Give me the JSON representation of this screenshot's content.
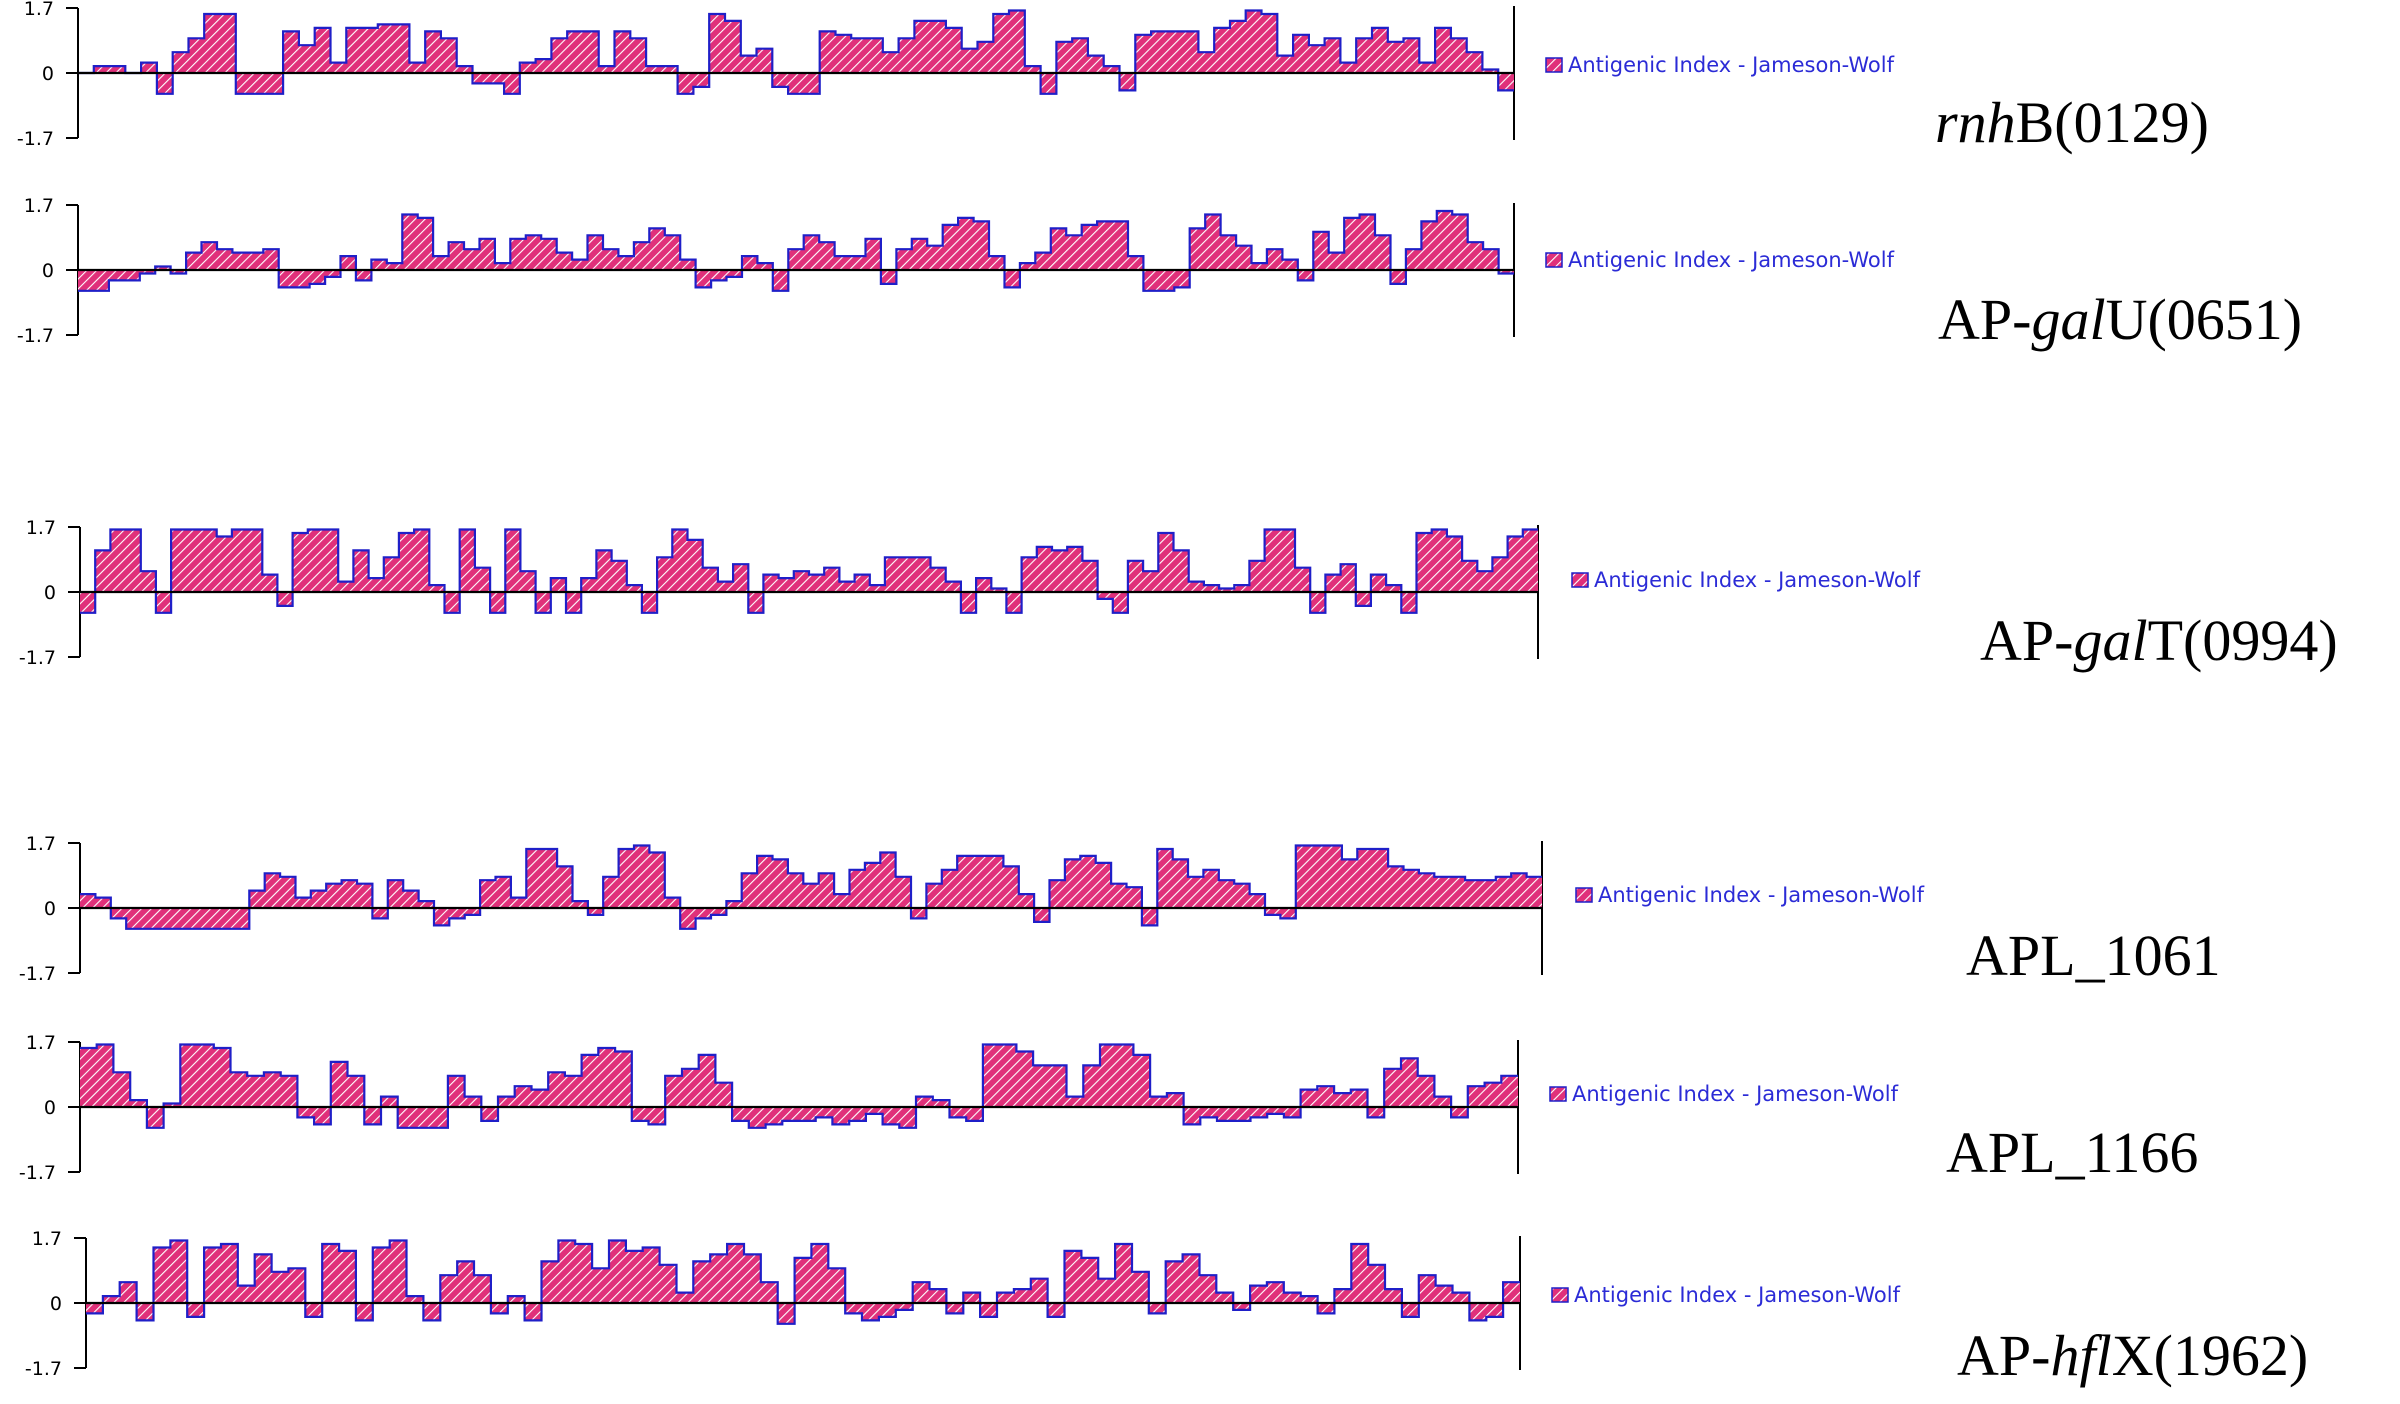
{
  "colors": {
    "fill": "#e0307a",
    "hatch": "#ffffff",
    "outline": "#1f1fc8",
    "axis": "#000000",
    "legend_text": "#2b2bd6"
  },
  "chart_data": [
    {
      "type": "area",
      "legend": "Antigenic Index - Jameson-Wolf",
      "gene_label": {
        "italic": "rnh",
        "rest": "B(0129)",
        "lead": ""
      },
      "yticks": [
        "1.7",
        "0",
        "-1.7"
      ],
      "ylim": [
        -1.7,
        1.7
      ],
      "values": [
        0,
        0.2,
        0.2,
        0,
        0.3,
        -0.6,
        0.6,
        1.0,
        1.7,
        1.7,
        -0.6,
        -0.6,
        -0.6,
        1.2,
        0.8,
        1.3,
        0.3,
        1.3,
        1.3,
        1.4,
        1.4,
        0.3,
        1.2,
        1.0,
        0.2,
        -0.3,
        -0.3,
        -0.6,
        0.3,
        0.4,
        1.0,
        1.2,
        1.2,
        0.2,
        1.2,
        1.0,
        0.2,
        0.2,
        -0.6,
        -0.4,
        1.7,
        1.5,
        0.5,
        0.7,
        -0.4,
        -0.6,
        -0.6,
        1.2,
        1.1,
        1.0,
        1.0,
        0.6,
        1.0,
        1.5,
        1.5,
        1.3,
        0.7,
        0.9,
        1.7,
        1.8,
        0.2,
        -0.6,
        0.9,
        1.0,
        0.5,
        0.2,
        -0.5,
        1.1,
        1.2,
        1.2,
        1.2,
        0.6,
        1.3,
        1.5,
        1.8,
        1.7,
        0.5,
        1.1,
        0.8,
        1.0,
        0.3,
        1.0,
        1.3,
        0.9,
        1.0,
        0.3,
        1.3,
        1.0,
        0.6,
        0.1,
        -0.5
      ]
    },
    {
      "type": "area",
      "legend": "Antigenic Index - Jameson-Wolf",
      "gene_label": {
        "lead": "AP-",
        "italic": "gal",
        "rest": "U(0651)"
      },
      "yticks": [
        "1.7",
        "0",
        "-1.7"
      ],
      "ylim": [
        -1.7,
        1.7
      ],
      "values": [
        -0.6,
        -0.6,
        -0.3,
        -0.3,
        -0.1,
        0.1,
        -0.1,
        0.5,
        0.8,
        0.6,
        0.5,
        0.5,
        0.6,
        -0.5,
        -0.5,
        -0.4,
        -0.2,
        0.4,
        -0.3,
        0.3,
        0.2,
        1.6,
        1.5,
        0.4,
        0.8,
        0.6,
        0.9,
        0.2,
        0.9,
        1.0,
        0.9,
        0.5,
        0.3,
        1.0,
        0.6,
        0.4,
        0.8,
        1.2,
        1.0,
        0.3,
        -0.5,
        -0.3,
        -0.2,
        0.4,
        0.2,
        -0.6,
        0.6,
        1.0,
        0.8,
        0.4,
        0.4,
        0.9,
        -0.4,
        0.6,
        0.9,
        0.7,
        1.3,
        1.5,
        1.4,
        0.4,
        -0.5,
        0.2,
        0.5,
        1.2,
        1.0,
        1.3,
        1.4,
        1.4,
        0.4,
        -0.6,
        -0.6,
        -0.5,
        1.2,
        1.6,
        1.0,
        0.7,
        0.2,
        0.6,
        0.3,
        -0.3,
        1.1,
        0.5,
        1.5,
        1.6,
        1.0,
        -0.4,
        0.6,
        1.4,
        1.7,
        1.6,
        0.8,
        0.6,
        -0.1
      ]
    },
    {
      "type": "area",
      "legend": "Antigenic Index - Jameson-Wolf",
      "gene_label": {
        "lead": "AP-",
        "italic": "gal",
        "rest": "T(0994)"
      },
      "yticks": [
        "1.7",
        "0",
        "-1.7"
      ],
      "ylim": [
        -1.7,
        1.7
      ],
      "values": [
        -0.6,
        1.2,
        1.8,
        1.8,
        0.6,
        -0.6,
        1.8,
        1.8,
        1.8,
        1.6,
        1.8,
        1.8,
        0.5,
        -0.4,
        1.7,
        1.8,
        1.8,
        0.3,
        1.2,
        0.4,
        1.0,
        1.7,
        1.8,
        0.2,
        -0.6,
        1.8,
        0.7,
        -0.6,
        1.8,
        0.6,
        -0.6,
        0.4,
        -0.6,
        0.4,
        1.2,
        0.9,
        0.2,
        -0.6,
        1.0,
        1.8,
        1.5,
        0.7,
        0.3,
        0.8,
        -0.6,
        0.5,
        0.4,
        0.6,
        0.5,
        0.7,
        0.3,
        0.5,
        0.2,
        1.0,
        1.0,
        1.0,
        0.7,
        0.3,
        -0.6,
        0.4,
        0.1,
        -0.6,
        1.0,
        1.3,
        1.2,
        1.3,
        0.9,
        -0.2,
        -0.6,
        0.9,
        0.6,
        1.7,
        1.2,
        0.3,
        0.2,
        0.1,
        0.2,
        0.9,
        1.8,
        1.8,
        0.7,
        -0.6,
        0.5,
        0.8,
        -0.4,
        0.5,
        0.2,
        -0.6,
        1.7,
        1.8,
        1.6,
        0.9,
        0.6,
        1.0,
        1.6,
        1.8
      ]
    },
    {
      "type": "area",
      "legend": "Antigenic Index - Jameson-Wolf",
      "gene_label": {
        "lead": "",
        "italic": "",
        "rest": "APL_1061"
      },
      "yticks": [
        "1.7",
        "0",
        "-1.7"
      ],
      "ylim": [
        -1.7,
        1.7
      ],
      "values": [
        0.4,
        0.3,
        -0.3,
        -0.6,
        -0.6,
        -0.6,
        -0.6,
        -0.6,
        -0.6,
        -0.6,
        -0.6,
        0.5,
        1.0,
        0.9,
        0.3,
        0.5,
        0.7,
        0.8,
        0.7,
        -0.3,
        0.8,
        0.5,
        0.2,
        -0.5,
        -0.3,
        -0.2,
        0.8,
        0.9,
        0.3,
        1.7,
        1.7,
        1.2,
        0.2,
        -0.2,
        0.9,
        1.7,
        1.8,
        1.6,
        0.3,
        -0.6,
        -0.3,
        -0.2,
        0.2,
        1.0,
        1.5,
        1.4,
        1.0,
        0.7,
        1.0,
        0.4,
        1.1,
        1.3,
        1.6,
        0.9,
        -0.3,
        0.7,
        1.1,
        1.5,
        1.5,
        1.5,
        1.2,
        0.4,
        -0.4,
        0.8,
        1.4,
        1.5,
        1.3,
        0.7,
        0.6,
        -0.5,
        1.7,
        1.4,
        0.9,
        1.1,
        0.8,
        0.7,
        0.4,
        -0.2,
        -0.3,
        1.8,
        1.8,
        1.8,
        1.4,
        1.7,
        1.7,
        1.2,
        1.1,
        1.0,
        0.9,
        0.9,
        0.8,
        0.8,
        0.9,
        1.0,
        0.9
      ]
    },
    {
      "type": "area",
      "legend": "Antigenic Index - Jameson-Wolf",
      "gene_label": {
        "lead": "",
        "italic": "",
        "rest": "APL_1166"
      },
      "yticks": [
        "1.7",
        "0",
        "-1.7"
      ],
      "ylim": [
        -1.7,
        1.7
      ],
      "values": [
        1.7,
        1.8,
        1.0,
        0.2,
        -0.6,
        0.1,
        1.8,
        1.8,
        1.7,
        1.0,
        0.9,
        1.0,
        0.9,
        -0.3,
        -0.5,
        1.3,
        0.9,
        -0.5,
        0.3,
        -0.6,
        -0.6,
        -0.6,
        0.9,
        0.3,
        -0.4,
        0.3,
        0.6,
        0.5,
        1.0,
        0.9,
        1.5,
        1.7,
        1.6,
        -0.4,
        -0.5,
        0.9,
        1.1,
        1.5,
        0.7,
        -0.4,
        -0.6,
        -0.5,
        -0.4,
        -0.4,
        -0.3,
        -0.5,
        -0.4,
        -0.2,
        -0.5,
        -0.6,
        0.3,
        0.2,
        -0.3,
        -0.4,
        1.8,
        1.8,
        1.6,
        1.2,
        1.2,
        0.3,
        1.2,
        1.8,
        1.8,
        1.5,
        0.3,
        0.4,
        -0.5,
        -0.3,
        -0.4,
        -0.4,
        -0.3,
        -0.2,
        -0.3,
        0.5,
        0.6,
        0.4,
        0.5,
        -0.3,
        1.1,
        1.4,
        0.9,
        0.3,
        -0.3,
        0.6,
        0.7,
        0.9
      ]
    },
    {
      "type": "area",
      "legend": "Antigenic Index - Jameson-Wolf",
      "gene_label": {
        "lead": "AP-",
        "italic": "hfl",
        "rest": "X(1962)"
      },
      "yticks": [
        "1.7",
        "0",
        "-1.7"
      ],
      "ylim": [
        -1.7,
        1.7
      ],
      "values": [
        -0.3,
        0.2,
        0.6,
        -0.5,
        1.6,
        1.8,
        -0.4,
        1.6,
        1.7,
        0.5,
        1.4,
        0.9,
        1.0,
        -0.4,
        1.7,
        1.5,
        -0.5,
        1.6,
        1.8,
        0.2,
        -0.5,
        0.8,
        1.2,
        0.8,
        -0.3,
        0.2,
        -0.5,
        1.2,
        1.8,
        1.7,
        1.0,
        1.8,
        1.5,
        1.6,
        1.1,
        0.3,
        1.2,
        1.4,
        1.7,
        1.4,
        0.6,
        -0.6,
        1.3,
        1.7,
        1.0,
        -0.3,
        -0.5,
        -0.4,
        -0.2,
        0.6,
        0.4,
        -0.3,
        0.3,
        -0.4,
        0.3,
        0.4,
        0.7,
        -0.4,
        1.5,
        1.3,
        0.7,
        1.7,
        0.9,
        -0.3,
        1.2,
        1.4,
        0.8,
        0.3,
        -0.2,
        0.5,
        0.6,
        0.3,
        0.2,
        -0.3,
        0.4,
        1.7,
        1.1,
        0.4,
        -0.4,
        0.8,
        0.5,
        0.3,
        -0.5,
        -0.4,
        0.6
      ]
    }
  ]
}
